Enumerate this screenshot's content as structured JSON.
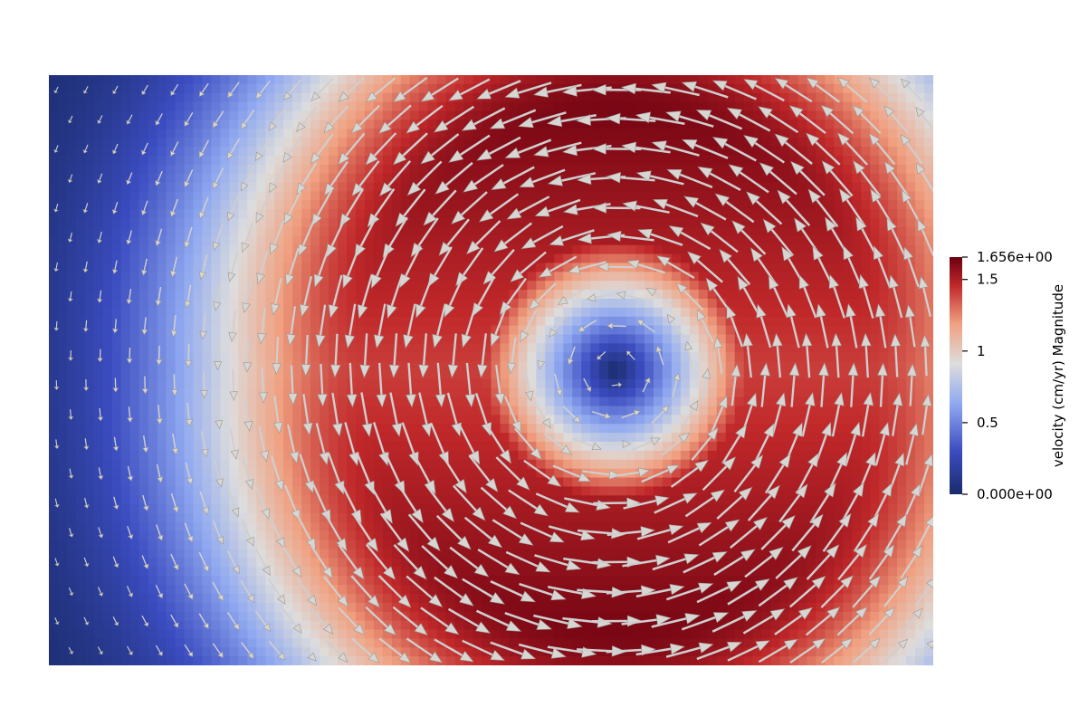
{
  "chart_data": {
    "type": "heatmap",
    "field": "velocity magnitude with glyph vectors",
    "colorbar": {
      "title": "velocity (cm/yr) Magnitude",
      "range": [
        0,
        1.656
      ],
      "ticks": [
        {
          "value": 1.656,
          "label": "1.656e+00"
        },
        {
          "value": 1.5,
          "label": "1.5"
        },
        {
          "value": 1,
          "label": "1"
        },
        {
          "value": 0.5,
          "label": "0.5"
        },
        {
          "value": 0,
          "label": "0.000e+00"
        }
      ],
      "colormap": "cool-to-warm",
      "colors": [
        "#1a2b6b",
        "#3b4cc0",
        "#8fa8f0",
        "#dddddd",
        "#f0a080",
        "#c0282a",
        "#6b0010"
      ]
    },
    "domain": {
      "x": [
        0,
        1
      ],
      "y": [
        0,
        1
      ]
    },
    "vortex_center": {
      "x": 0.64,
      "y": 0.5
    },
    "peak_speed": 1.656,
    "arrow_color": "#cfcfcf"
  }
}
